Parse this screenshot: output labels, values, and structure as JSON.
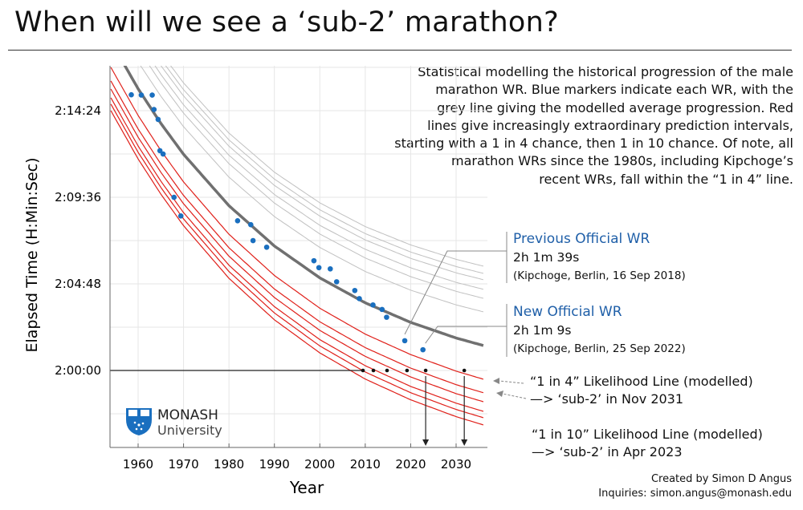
{
  "title": "When will we see a ‘sub-2’ marathon?",
  "description": [
    "Statistical modelling the historical progression of the male",
    "marathon WR. Blue markers indicate each WR, with the",
    "grey line giving the modelled average progression. Red",
    "lines give increasingly extraordinary prediction intervals,",
    "starting with a 1 in 4 chance, then 1 in 10 chance. Of note, all",
    "marathon WRs since the 1980s, including Kipchoge’s",
    "recent WRs, fall within the “1 in 4” line."
  ],
  "annotations": {
    "previous": {
      "heading": "Previous Official WR",
      "time": "2h 1m 39s",
      "detail": "(Kipchoge, Berlin, 16 Sep 2018)"
    },
    "new": {
      "heading": "New Official WR",
      "time": "2h 1m 9s",
      "detail": "(Kipchoge, Berlin, 25 Sep 2022)"
    },
    "one_in_four": {
      "line1": "“1 in 4” Likelihood Line (modelled)",
      "line2": "—> ‘sub-2’ in Nov 2031"
    },
    "one_in_ten": {
      "line1": "“1 in 10” Likelihood Line (modelled)",
      "line2": "—> ‘sub-2’ in Apr 2023"
    }
  },
  "logo": {
    "name": "MONASH",
    "sub": "University"
  },
  "credit": {
    "line1": "Created by Simon D Angus",
    "line2": "Inquiries: simon.angus@monash.edu"
  },
  "colors": {
    "wr_marker": "#1a6fbf",
    "mean_line": "#707070",
    "interval_upper": "#c0c0c0",
    "interval_lower": "#e0201a",
    "annotation_heading": "#1f5fa8"
  },
  "chart_data": {
    "type": "scatter+line",
    "xlabel": "Year",
    "ylabel": "Elapsed Time (H:Min:Sec)",
    "xlim": [
      1954,
      2036
    ],
    "ylim": [
      "1:55:44",
      "2:16:53"
    ],
    "x_ticks": [
      1960,
      1970,
      1980,
      1990,
      2000,
      2010,
      2020,
      2030
    ],
    "y_ticks": [
      "2:00:00",
      "2:04:48",
      "2:09:36",
      "2:14:24"
    ],
    "grid": true,
    "world_records": [
      {
        "year": 1958.5,
        "time": "2:15:17"
      },
      {
        "year": 1960.7,
        "time": "2:15:16"
      },
      {
        "year": 1963.1,
        "time": "2:15:16"
      },
      {
        "year": 1963.5,
        "time": "2:14:28"
      },
      {
        "year": 1964.4,
        "time": "2:13:55"
      },
      {
        "year": 1964.8,
        "time": "2:12:11"
      },
      {
        "year": 1965.5,
        "time": "2:12:00"
      },
      {
        "year": 1967.9,
        "time": "2:09:36"
      },
      {
        "year": 1969.4,
        "time": "2:08:34"
      },
      {
        "year": 1981.9,
        "time": "2:08:18"
      },
      {
        "year": 1984.8,
        "time": "2:08:05"
      },
      {
        "year": 1985.3,
        "time": "2:07:12"
      },
      {
        "year": 1988.3,
        "time": "2:06:50"
      },
      {
        "year": 1998.7,
        "time": "2:06:05"
      },
      {
        "year": 1999.8,
        "time": "2:05:42"
      },
      {
        "year": 2002.3,
        "time": "2:05:38"
      },
      {
        "year": 2003.7,
        "time": "2:04:55"
      },
      {
        "year": 2007.7,
        "time": "2:04:26"
      },
      {
        "year": 2008.7,
        "time": "2:03:59"
      },
      {
        "year": 2011.7,
        "time": "2:03:38"
      },
      {
        "year": 2013.7,
        "time": "2:03:23"
      },
      {
        "year": 2014.7,
        "time": "2:02:57"
      },
      {
        "year": 2018.7,
        "time": "2:01:39"
      },
      {
        "year": 2022.7,
        "time": "2:01:09"
      }
    ],
    "mean_progression": [
      {
        "year": 1954,
        "time": "2:18:15"
      },
      {
        "year": 1960,
        "time": "2:15:37"
      },
      {
        "year": 1965,
        "time": "2:13:42"
      },
      {
        "year": 1970,
        "time": "2:11:59"
      },
      {
        "year": 1980,
        "time": "2:09:08"
      },
      {
        "year": 1990,
        "time": "2:06:54"
      },
      {
        "year": 2000,
        "time": "2:05:08"
      },
      {
        "year": 2010,
        "time": "2:03:45"
      },
      {
        "year": 2020,
        "time": "2:02:40"
      },
      {
        "year": 2030,
        "time": "2:01:48"
      },
      {
        "year": 2036,
        "time": "2:01:23"
      }
    ],
    "prediction_interval_offsets_s": [
      {
        "start": 87,
        "end": 112
      },
      {
        "start": 132,
        "end": 157
      },
      {
        "start": 159,
        "end": 187
      },
      {
        "start": 188,
        "end": 219
      },
      {
        "start": 209,
        "end": 240
      },
      {
        "start": 231,
        "end": 264
      }
    ],
    "sub2_crossings": [
      2009.5,
      2011.8,
      2014.8,
      2019.2,
      2023.3,
      2031.8
    ],
    "highlighted_crossings": [
      2023.3,
      2031.8
    ]
  }
}
